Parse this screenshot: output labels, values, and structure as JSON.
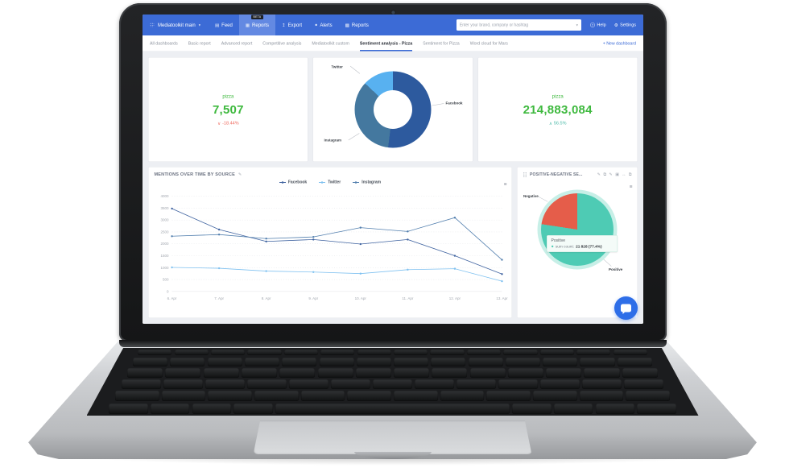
{
  "nav": {
    "brand": "Mediatoolkit main",
    "items": [
      {
        "label": "Feed"
      },
      {
        "label": "Reports",
        "badge": "BETA",
        "active": true
      },
      {
        "label": "Export"
      },
      {
        "label": "Alerts"
      },
      {
        "label": "Reports"
      }
    ],
    "search_placeholder": "Enter your brand, company or hashtag",
    "help_label": "Help",
    "settings_label": "Settings"
  },
  "tabs": {
    "items": [
      "All dashboards",
      "Basic report",
      "Advanced report",
      "Competitive analysis",
      "Mediatoolkit custom",
      "Sentiment analysis - Pizza",
      "Sentiment for Pizza",
      "Word cloud for Mars"
    ],
    "active": "Sentiment analysis - Pizza",
    "new_dashboard_label": "+ New dashboard"
  },
  "stats": {
    "left": {
      "label": "pizza",
      "value": "7,507",
      "delta": "-18.44%",
      "delta_direction": "down"
    },
    "right": {
      "label": "pizza",
      "value": "214,883,084",
      "delta": "56.5%",
      "delta_direction": "up"
    }
  },
  "panels": {
    "mentions": {
      "title": "MENTIONS OVER TIME BY SOURCE"
    },
    "sentiment": {
      "title": "POSITIVE-NEGATIVE SE..."
    }
  },
  "colors": {
    "nav_blue": "#3c6bd6",
    "green": "#3eb93e",
    "red": "#ef6a5e",
    "teal": "#49b9a8",
    "facebook": "#3f63a0",
    "twitter": "#7fc1f0",
    "instagram": "#527fae",
    "positive": "#4ecbb4",
    "negative": "#e55d4a"
  },
  "chart_data": [
    {
      "type": "pie",
      "variant": "donut",
      "legend_position": "callout-labels",
      "slices": [
        {
          "label": "Facebook",
          "value": 52,
          "color": "#2d5a9e"
        },
        {
          "label": "Instagram",
          "value": 35,
          "color": "#44789f"
        },
        {
          "label": "Twitter",
          "value": 13,
          "color": "#58b1f0"
        }
      ]
    },
    {
      "type": "line",
      "title": "MENTIONS OVER TIME BY SOURCE",
      "categories": [
        "6. Apr",
        "7. Apr",
        "8. Apr",
        "9. Apr",
        "10. Apr",
        "11. Apr",
        "12. Apr",
        "13. Apr"
      ],
      "series": [
        {
          "name": "Facebook",
          "color": "#3f63a0",
          "values": [
            3480,
            2600,
            2100,
            2180,
            1990,
            2180,
            1500,
            730
          ]
        },
        {
          "name": "Twitter",
          "color": "#7fc1f0",
          "values": [
            1010,
            975,
            855,
            815,
            750,
            915,
            955,
            430
          ]
        },
        {
          "name": "Instagram",
          "color": "#527fae",
          "values": [
            2320,
            2390,
            2220,
            2290,
            2680,
            2520,
            3100,
            1330
          ]
        }
      ],
      "xlabel": "",
      "ylabel": "",
      "ylim": [
        0,
        4000
      ],
      "ytick_step": 500,
      "grid": "dotted-horizontal",
      "legend_position": "top-center"
    },
    {
      "type": "pie",
      "title": "POSITIVE-NEGATIVE SE...",
      "slices": [
        {
          "label": "Positive",
          "value": 77.4,
          "color": "#4ecbb4"
        },
        {
          "label": "Negative",
          "value": 22.6,
          "color": "#e55d4a"
        }
      ],
      "tooltip": {
        "title": "Positive",
        "label": "sum count:",
        "value": "21 828 (77.4%)"
      }
    }
  ]
}
